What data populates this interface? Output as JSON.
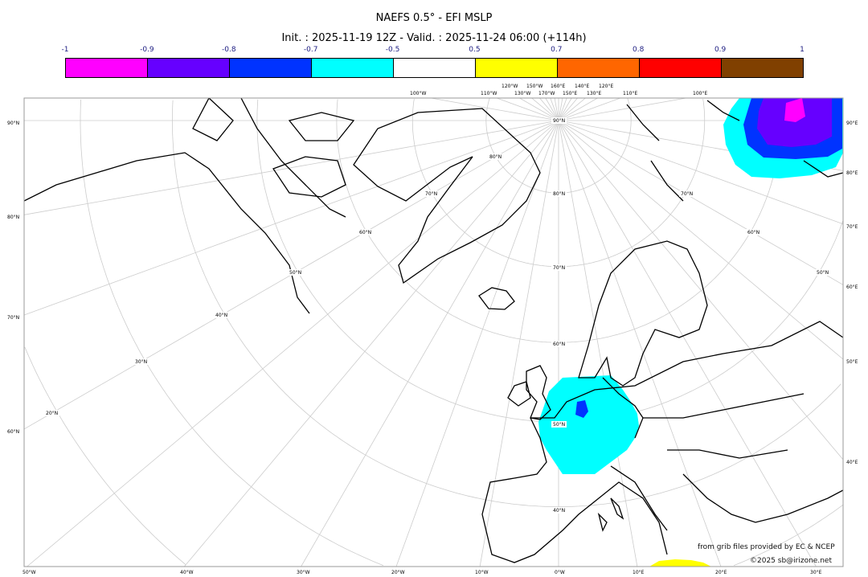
{
  "title": "NAEFS 0.5° - EFI MSLP",
  "subtitle": "Init. : 2025-11-19 12Z - Valid. : 2025-11-24 06:00 (+114h)",
  "colorbar": {
    "ticks": [
      "-1",
      "-0.9",
      "-0.8",
      "-0.7",
      "-0.5",
      "0.5",
      "0.7",
      "0.8",
      "0.9",
      "1"
    ],
    "colors": [
      "#ff00ff",
      "#6600ff",
      "#0033ff",
      "#00ffff",
      "#ffffff",
      "#ffff00",
      "#ff6600",
      "#ff0000",
      "#804000"
    ]
  },
  "map": {
    "projection": "polar stereographic",
    "left_labels": [
      "90°N",
      "80°N",
      "70°N",
      "60°N"
    ],
    "right_labels": [
      "90°E",
      "80°E",
      "70°E",
      "60°E",
      "50°E",
      "40°E"
    ],
    "bottom_labels": [
      "50°W",
      "40°W",
      "30°W",
      "20°W",
      "10°W",
      "0°W",
      "10°E",
      "20°E",
      "30°E"
    ],
    "top_labels": [
      "100°W",
      "110°W",
      "120°W",
      "130°W",
      "150°W",
      "170°W",
      "160°E",
      "150°E",
      "140°E",
      "130°E",
      "120°E",
      "110°E",
      "100°E"
    ],
    "pole_labels": [
      "90°N",
      "80°N",
      "70°N",
      "60°N",
      "50°N",
      "40°N"
    ],
    "west_lat_labels": [
      "80°N",
      "70°N",
      "60°N",
      "50°N",
      "40°N",
      "30°N",
      "20°N"
    ],
    "east_lat_labels": [
      "70°N",
      "60°N",
      "50°N"
    ],
    "meridians_deg": [
      -180,
      -170,
      -160,
      -150,
      -140,
      -130,
      -120,
      -110,
      -100,
      -90,
      -80,
      -70,
      -60,
      -50,
      -40,
      -30,
      -20,
      -10,
      0,
      10,
      20,
      30,
      40,
      50,
      60,
      70,
      80,
      90,
      100,
      110,
      120,
      130,
      140,
      150,
      160,
      170
    ],
    "parallels_deg": [
      80,
      70,
      60,
      50,
      40,
      30,
      20
    ]
  },
  "credits": {
    "line1": "from grib files provided by EC & NCEP",
    "line2": "©2025 sb@irizone.net"
  }
}
